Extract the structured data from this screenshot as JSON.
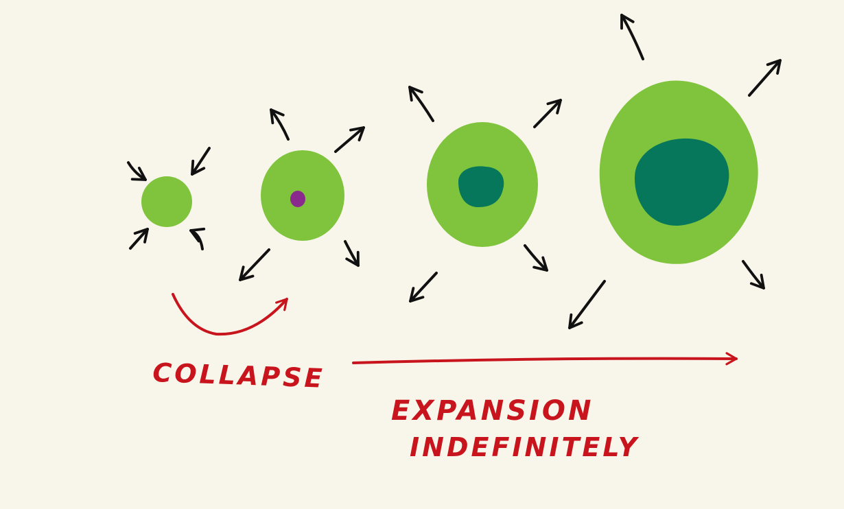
{
  "labels": {
    "collapse": "COLLAPSE",
    "expansion_line1": "EXPANSION",
    "expansion_line2": "INDEFINITELY"
  },
  "stages": [
    {
      "name": "stage-1",
      "direction": "inward",
      "has_core": false,
      "core_color": ""
    },
    {
      "name": "stage-2",
      "direction": "outward",
      "has_core": true,
      "core_color": "#8a2a8c"
    },
    {
      "name": "stage-3",
      "direction": "outward",
      "has_core": true,
      "core_color": "#06775a"
    },
    {
      "name": "stage-4",
      "direction": "outward",
      "has_core": true,
      "core_color": "#06775a"
    }
  ],
  "colors": {
    "background": "#f8f5ea",
    "outer_body": "#7fc43c",
    "inner_core": "#06775a",
    "seed_core": "#8a2a8c",
    "annotation": "#c8141c",
    "arrows": "#111111"
  }
}
